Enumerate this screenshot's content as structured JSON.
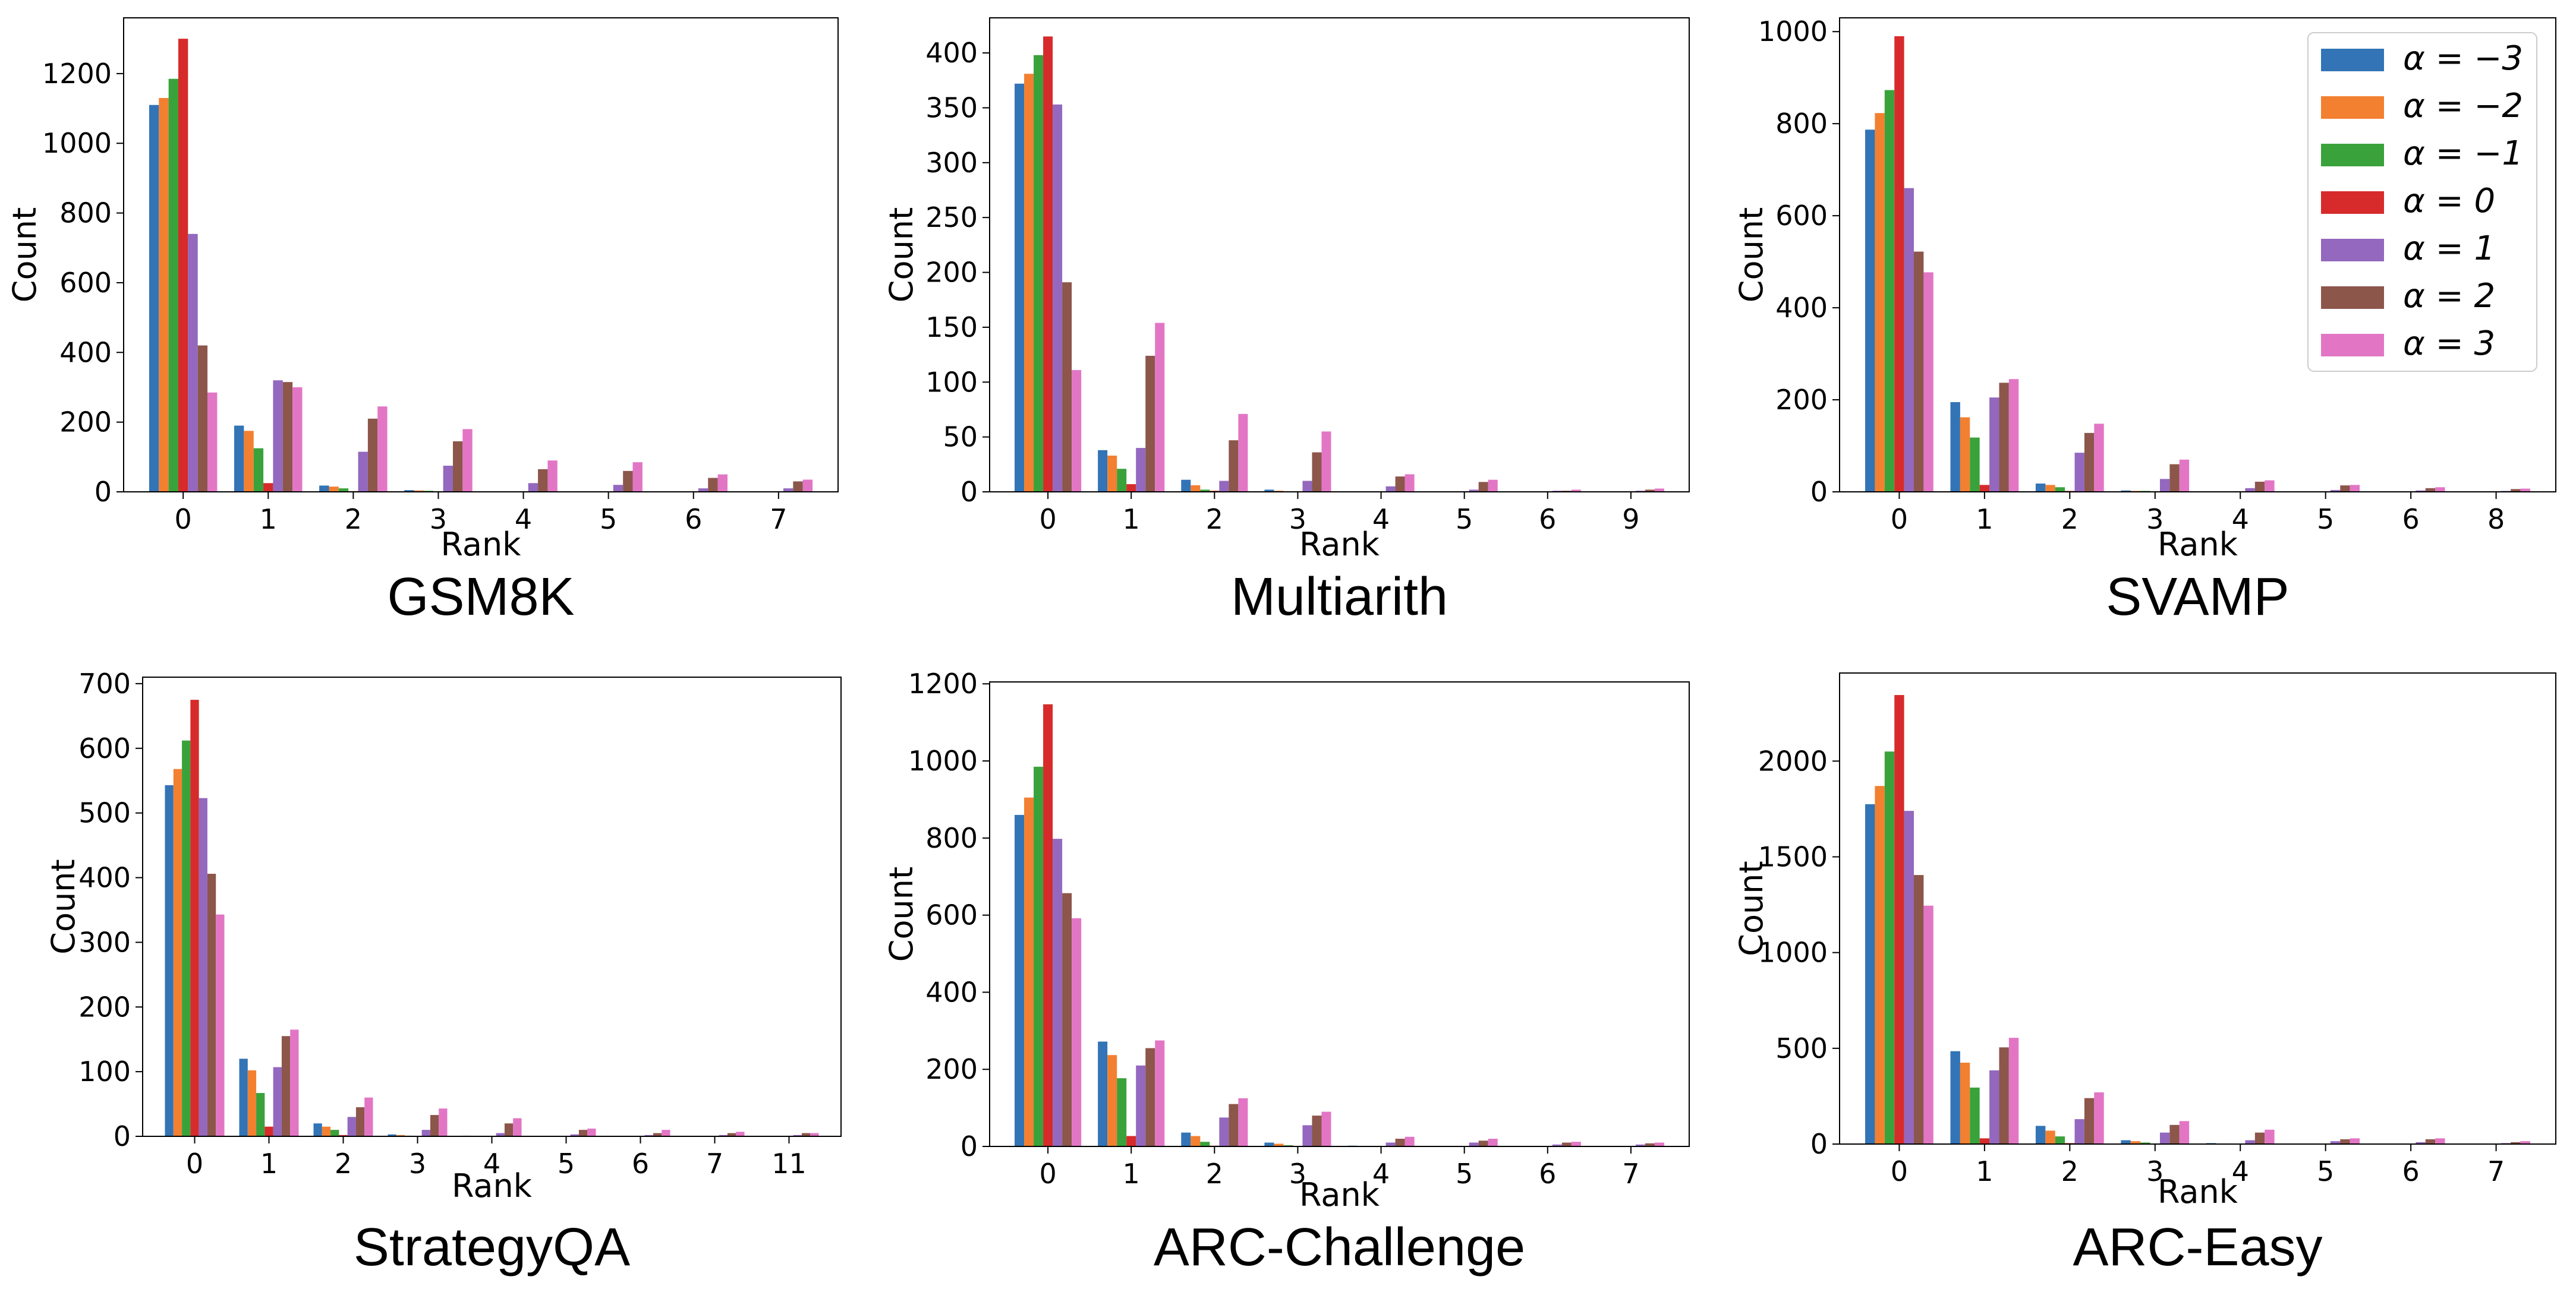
{
  "series_colors": [
    "#3274b6",
    "#f28030",
    "#3aa23a",
    "#d62b2a",
    "#9368be",
    "#8c564b",
    "#e276c5"
  ],
  "legend": {
    "entries": [
      "α = −3",
      "α = −2",
      "α = −1",
      "α = 0",
      "α = 1",
      "α = 2",
      "α = 3"
    ]
  },
  "chart_data": [
    {
      "type": "bar",
      "title": "GSM8K",
      "xlabel": "Rank",
      "ylabel": "Count",
      "categories": [
        "0",
        "1",
        "2",
        "3",
        "4",
        "5",
        "6",
        "7"
      ],
      "ylim": [
        0,
        1360
      ],
      "yticks": [
        0,
        200,
        400,
        600,
        800,
        1000,
        1200
      ],
      "series": [
        {
          "name": "α = −3",
          "values": [
            1110,
            190,
            18,
            5,
            1,
            0,
            0,
            0
          ]
        },
        {
          "name": "α = −2",
          "values": [
            1130,
            175,
            15,
            4,
            1,
            0,
            0,
            0
          ]
        },
        {
          "name": "α = −1",
          "values": [
            1185,
            125,
            10,
            3,
            0,
            0,
            0,
            0
          ]
        },
        {
          "name": "α = 0",
          "values": [
            1300,
            25,
            2,
            0,
            0,
            0,
            0,
            0
          ]
        },
        {
          "name": "α = 1",
          "values": [
            740,
            320,
            115,
            75,
            25,
            20,
            10,
            10
          ]
        },
        {
          "name": "α = 2",
          "values": [
            420,
            315,
            210,
            145,
            65,
            60,
            40,
            30
          ]
        },
        {
          "name": "α = 3",
          "values": [
            285,
            300,
            245,
            180,
            90,
            85,
            50,
            35
          ]
        }
      ]
    },
    {
      "type": "bar",
      "title": "Multiarith",
      "xlabel": "Rank",
      "ylabel": "Count",
      "categories": [
        "0",
        "1",
        "2",
        "3",
        "4",
        "5",
        "6",
        "9"
      ],
      "ylim": [
        0,
        432
      ],
      "yticks": [
        0,
        50,
        100,
        150,
        200,
        250,
        300,
        350,
        400
      ],
      "series": [
        {
          "name": "α = −3",
          "values": [
            372,
            38,
            11,
            2,
            0,
            0,
            0,
            0
          ]
        },
        {
          "name": "α = −2",
          "values": [
            381,
            33,
            6,
            1,
            0,
            0,
            0,
            0
          ]
        },
        {
          "name": "α = −1",
          "values": [
            398,
            21,
            2,
            0,
            0,
            0,
            0,
            0
          ]
        },
        {
          "name": "α = 0",
          "values": [
            415,
            7,
            1,
            0,
            0,
            0,
            0,
            0
          ]
        },
        {
          "name": "α = 1",
          "values": [
            353,
            40,
            10,
            10,
            5,
            2,
            1,
            1
          ]
        },
        {
          "name": "α = 2",
          "values": [
            191,
            124,
            47,
            36,
            14,
            9,
            1,
            2
          ]
        },
        {
          "name": "α = 3",
          "values": [
            111,
            154,
            71,
            55,
            16,
            11,
            2,
            3
          ]
        }
      ]
    },
    {
      "type": "bar",
      "title": "SVAMP",
      "xlabel": "Rank",
      "ylabel": "Count",
      "categories": [
        "0",
        "1",
        "2",
        "3",
        "4",
        "5",
        "6",
        "8"
      ],
      "ylim": [
        0,
        1030
      ],
      "yticks": [
        0,
        200,
        400,
        600,
        800,
        1000
      ],
      "series": [
        {
          "name": "α = −3",
          "values": [
            787,
            195,
            18,
            3,
            1,
            0,
            0,
            0
          ]
        },
        {
          "name": "α = −2",
          "values": [
            823,
            162,
            15,
            2,
            0,
            0,
            0,
            0
          ]
        },
        {
          "name": "α = −1",
          "values": [
            873,
            118,
            10,
            2,
            0,
            0,
            0,
            0
          ]
        },
        {
          "name": "α = 0",
          "values": [
            990,
            15,
            2,
            0,
            0,
            0,
            0,
            0
          ]
        },
        {
          "name": "α = 1",
          "values": [
            660,
            205,
            85,
            28,
            8,
            4,
            3,
            2
          ]
        },
        {
          "name": "α = 2",
          "values": [
            522,
            237,
            128,
            60,
            22,
            14,
            8,
            6
          ]
        },
        {
          "name": "α = 3",
          "values": [
            477,
            245,
            148,
            70,
            25,
            15,
            10,
            7
          ]
        }
      ]
    },
    {
      "type": "bar",
      "title": "StrategyQA",
      "xlabel": "Rank",
      "ylabel": "Count",
      "categories": [
        "0",
        "1",
        "2",
        "3",
        "4",
        "5",
        "6",
        "7",
        "11"
      ],
      "ylim": [
        0,
        710
      ],
      "yticks": [
        0,
        100,
        200,
        300,
        400,
        500,
        600,
        700
      ],
      "series": [
        {
          "name": "α = −3",
          "values": [
            543,
            120,
            20,
            3,
            1,
            0,
            0,
            0,
            0
          ]
        },
        {
          "name": "α = −2",
          "values": [
            568,
            102,
            15,
            2,
            0,
            0,
            0,
            0,
            0
          ]
        },
        {
          "name": "α = −1",
          "values": [
            612,
            67,
            10,
            1,
            0,
            0,
            0,
            0,
            0
          ]
        },
        {
          "name": "α = 0",
          "values": [
            675,
            15,
            2,
            0,
            0,
            0,
            0,
            0,
            0
          ]
        },
        {
          "name": "α = 1",
          "values": [
            523,
            107,
            30,
            10,
            5,
            3,
            2,
            2,
            2
          ]
        },
        {
          "name": "α = 2",
          "values": [
            406,
            155,
            45,
            33,
            20,
            10,
            5,
            5,
            5
          ]
        },
        {
          "name": "α = 3",
          "values": [
            343,
            165,
            60,
            43,
            28,
            12,
            10,
            7,
            5
          ]
        }
      ]
    },
    {
      "type": "bar",
      "title": "ARC-Challenge",
      "xlabel": "Rank",
      "ylabel": "Count",
      "categories": [
        "0",
        "1",
        "2",
        "3",
        "4",
        "5",
        "6",
        "7"
      ],
      "ylim": [
        0,
        1205
      ],
      "yticks": [
        0,
        200,
        400,
        600,
        800,
        1000,
        1200
      ],
      "series": [
        {
          "name": "α = −3",
          "values": [
            860,
            272,
            36,
            10,
            2,
            1,
            0,
            0
          ]
        },
        {
          "name": "α = −2",
          "values": [
            905,
            237,
            27,
            7,
            1,
            0,
            0,
            0
          ]
        },
        {
          "name": "α = −1",
          "values": [
            985,
            177,
            12,
            3,
            0,
            0,
            0,
            0
          ]
        },
        {
          "name": "α = 0",
          "values": [
            1147,
            27,
            2,
            0,
            0,
            0,
            0,
            0
          ]
        },
        {
          "name": "α = 1",
          "values": [
            798,
            210,
            75,
            55,
            10,
            10,
            5,
            5
          ]
        },
        {
          "name": "α = 2",
          "values": [
            657,
            255,
            110,
            80,
            20,
            15,
            10,
            8
          ]
        },
        {
          "name": "α = 3",
          "values": [
            592,
            275,
            125,
            90,
            25,
            20,
            12,
            10
          ]
        }
      ]
    },
    {
      "type": "bar",
      "title": "ARC-Easy",
      "xlabel": "Rank",
      "ylabel": "Count",
      "categories": [
        "0",
        "1",
        "2",
        "3",
        "4",
        "5",
        "6",
        "7"
      ],
      "ylim": [
        0,
        2460
      ],
      "yticks": [
        0,
        500,
        1000,
        1500,
        2000
      ],
      "series": [
        {
          "name": "α = −3",
          "values": [
            1775,
            485,
            95,
            20,
            5,
            2,
            1,
            0
          ]
        },
        {
          "name": "α = −2",
          "values": [
            1870,
            425,
            70,
            15,
            3,
            1,
            0,
            0
          ]
        },
        {
          "name": "α = −1",
          "values": [
            2050,
            295,
            40,
            8,
            2,
            0,
            0,
            0
          ]
        },
        {
          "name": "α = 0",
          "values": [
            2345,
            30,
            5,
            1,
            0,
            0,
            0,
            0
          ]
        },
        {
          "name": "α = 1",
          "values": [
            1740,
            385,
            130,
            60,
            20,
            15,
            10,
            5
          ]
        },
        {
          "name": "α = 2",
          "values": [
            1405,
            505,
            240,
            100,
            60,
            25,
            25,
            10
          ]
        },
        {
          "name": "α = 3",
          "values": [
            1245,
            555,
            270,
            120,
            75,
            30,
            30,
            15
          ]
        }
      ]
    }
  ]
}
